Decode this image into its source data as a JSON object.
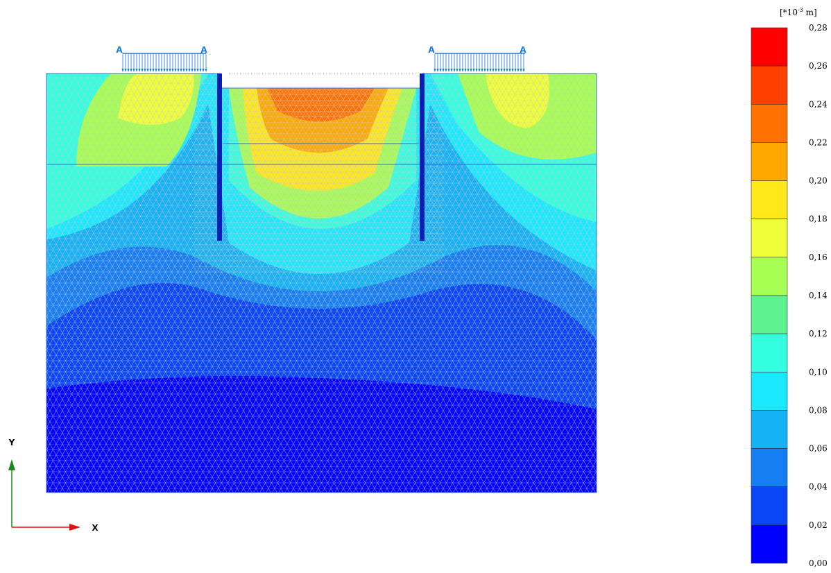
{
  "legend": {
    "unit": {
      "base": "[*10",
      "exponent": "-3",
      "suffix": " m]"
    },
    "labels": [
      "0,28",
      "0,26",
      "0,24",
      "0,22",
      "0,20",
      "0,18",
      "0,16",
      "0,14",
      "0,12",
      "0,10",
      "0,08",
      "0,06",
      "0,04",
      "0,02",
      "0,00"
    ],
    "colors": [
      "#ff0000",
      "#ff4000",
      "#ff7200",
      "#ffa800",
      "#ffe81a",
      "#eeff3a",
      "#a6ff52",
      "#5cf28e",
      "#33ffe0",
      "#1ae8ff",
      "#15b2f5",
      "#157ef2",
      "#0a46f5",
      "#0000ff"
    ]
  },
  "loads": [
    {
      "labels": [
        "A",
        "A"
      ]
    },
    {
      "labels": [
        "A",
        "A"
      ]
    }
  ],
  "axes": {
    "y": "Y",
    "x": "X"
  }
}
